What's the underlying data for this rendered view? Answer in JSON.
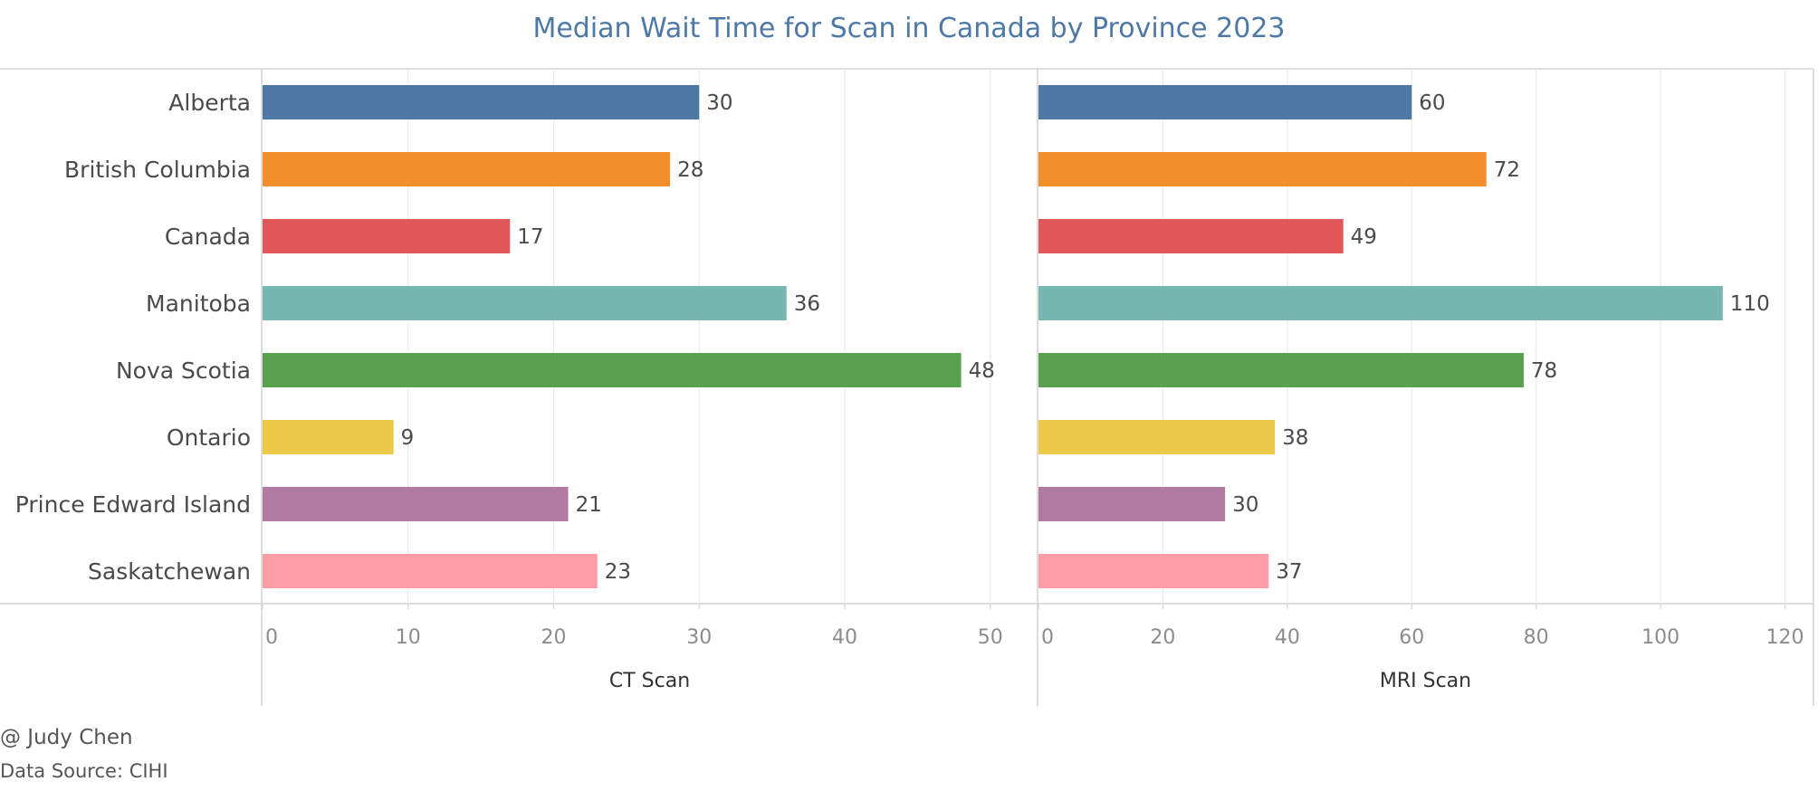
{
  "title": "Median Wait Time for Scan in Canada by Province 2023",
  "footer": {
    "credit": "@ Judy Chen",
    "source": "Data Source: CIHI"
  },
  "chart_data": {
    "type": "bar",
    "orientation": "horizontal",
    "title": "Median Wait Time for Scan in Canada by Province 2023",
    "categories": [
      "Alberta",
      "British Columbia",
      "Canada",
      "Manitoba",
      "Nova Scotia",
      "Ontario",
      "Prince Edward Island",
      "Saskatchewan"
    ],
    "colors": [
      "#4e79a7",
      "#f28e2b",
      "#e15759",
      "#76b7b2",
      "#59a14f",
      "#edc948",
      "#b07aa1",
      "#ff9da7"
    ],
    "panels": [
      {
        "name": "CT Scan",
        "xlabel": "CT Scan",
        "values": [
          30,
          28,
          17,
          36,
          48,
          9,
          21,
          23
        ],
        "xlim": [
          0,
          53
        ],
        "ticks": [
          0,
          10,
          20,
          30,
          40,
          50
        ]
      },
      {
        "name": "MRI Scan",
        "xlabel": "MRI Scan",
        "values": [
          60,
          72,
          49,
          110,
          78,
          38,
          30,
          37
        ],
        "xlim": [
          0,
          124
        ],
        "ticks": [
          0,
          20,
          40,
          60,
          80,
          100,
          120
        ]
      }
    ],
    "grid": true,
    "legend": "none"
  }
}
